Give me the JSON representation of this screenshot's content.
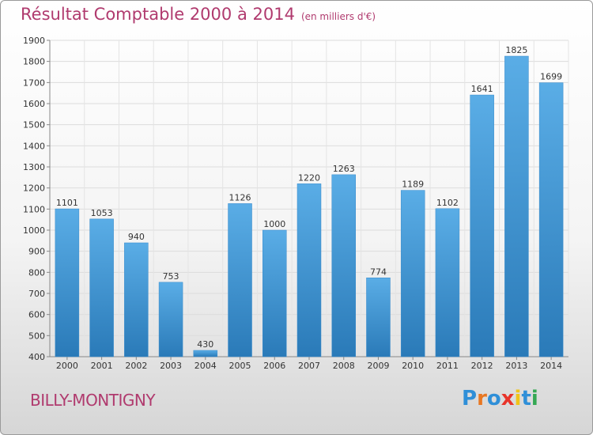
{
  "header": {
    "title": "Résultat Comptable 2000 à 2014",
    "subtitle": "(en milliers d'€)"
  },
  "footer": {
    "place": "BILLY-MONTIGNY",
    "logo": "Proxiti"
  },
  "colors": {
    "title": "#b03a6e",
    "bar_top": "#5aade6",
    "bar_bottom": "#2a7ab8",
    "logo_letters": [
      "#2f8fd8",
      "#e87722",
      "#2f8fd8",
      "#e8342a",
      "#f0c419",
      "#2f8fd8",
      "#34a853"
    ]
  },
  "chart_data": {
    "type": "bar",
    "categories": [
      "2000",
      "2001",
      "2002",
      "2003",
      "2004",
      "2005",
      "2006",
      "2007",
      "2008",
      "2009",
      "2010",
      "2011",
      "2012",
      "2013",
      "2014"
    ],
    "values": [
      1101,
      1053,
      940,
      753,
      430,
      1126,
      1000,
      1220,
      1263,
      774,
      1189,
      1102,
      1641,
      1825,
      1699
    ],
    "data_labels": [
      "1101",
      "1053",
      "940",
      "753",
      "430",
      "1126",
      "1000",
      "1220",
      "1263",
      "774",
      "1189",
      "1102",
      "1641",
      "1825",
      "1699"
    ],
    "ylim": [
      400,
      1900
    ],
    "yticks": [
      400,
      500,
      600,
      700,
      800,
      900,
      1000,
      1100,
      1200,
      1300,
      1400,
      1500,
      1600,
      1700,
      1800,
      1900
    ],
    "ytick_labels": [
      "400",
      "500",
      "600",
      "700",
      "800",
      "900",
      "1000",
      "1100",
      "1200",
      "1300",
      "1400",
      "1500",
      "1600",
      "1700",
      "1800",
      "1900"
    ],
    "grid": true,
    "legend": "none"
  }
}
